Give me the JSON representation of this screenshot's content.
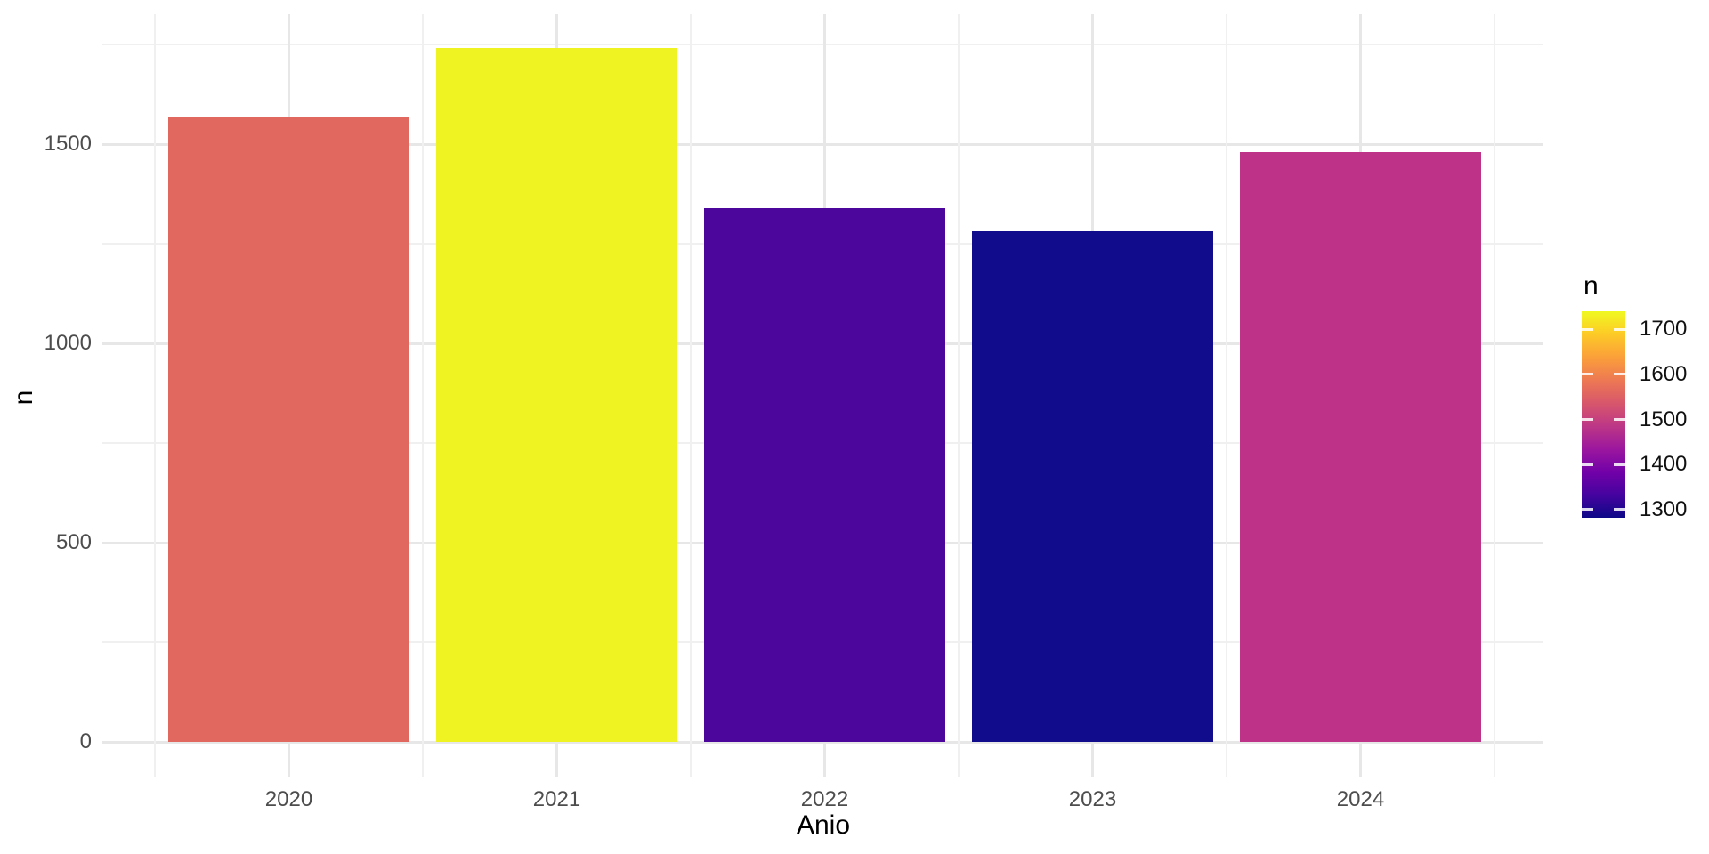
{
  "figure": {
    "background": "#ffffff"
  },
  "chart_data": {
    "type": "bar",
    "title": "",
    "categories": [
      "2020",
      "2021",
      "2022",
      "2023",
      "2024"
    ],
    "values": [
      1568,
      1740,
      1340,
      1282,
      1480
    ],
    "bar_colors": [
      "#e0685f",
      "#eff322",
      "#4d069b",
      "#100c8b",
      "#be3387"
    ],
    "xlabel": "Anio",
    "ylabel": "n",
    "x_tick_labels": [
      "2020",
      "2021",
      "2022",
      "2023",
      "2024"
    ],
    "y_axis": {
      "ticks": [
        0,
        500,
        1000,
        1500
      ],
      "tick_labels": [
        "0",
        "500",
        "1000",
        "1500"
      ],
      "minor_ticks": [
        250,
        750,
        1250,
        1750
      ],
      "range": [
        -87,
        1826
      ]
    },
    "grid": {
      "show": true,
      "major_color": "#e7e7e7",
      "minor_color": "#f0f0f0"
    },
    "axis_text_color": "#4d4d4d",
    "axis_title_color": "#000000",
    "legend": {
      "position": "right",
      "title": "n",
      "tick_labels": [
        "1700",
        "1600",
        "1500",
        "1400",
        "1300"
      ],
      "tick_values": [
        1700,
        1600,
        1500,
        1400,
        1300
      ],
      "min": 1282,
      "max": 1740,
      "colormap": "plasma",
      "gradient_stops_bottom_to_top": [
        "#0d0887",
        "#46039f",
        "#7201a8",
        "#9c179e",
        "#bd3786",
        "#d8576b",
        "#ed7953",
        "#fb9f3a",
        "#fdca26",
        "#f0f921"
      ]
    }
  }
}
